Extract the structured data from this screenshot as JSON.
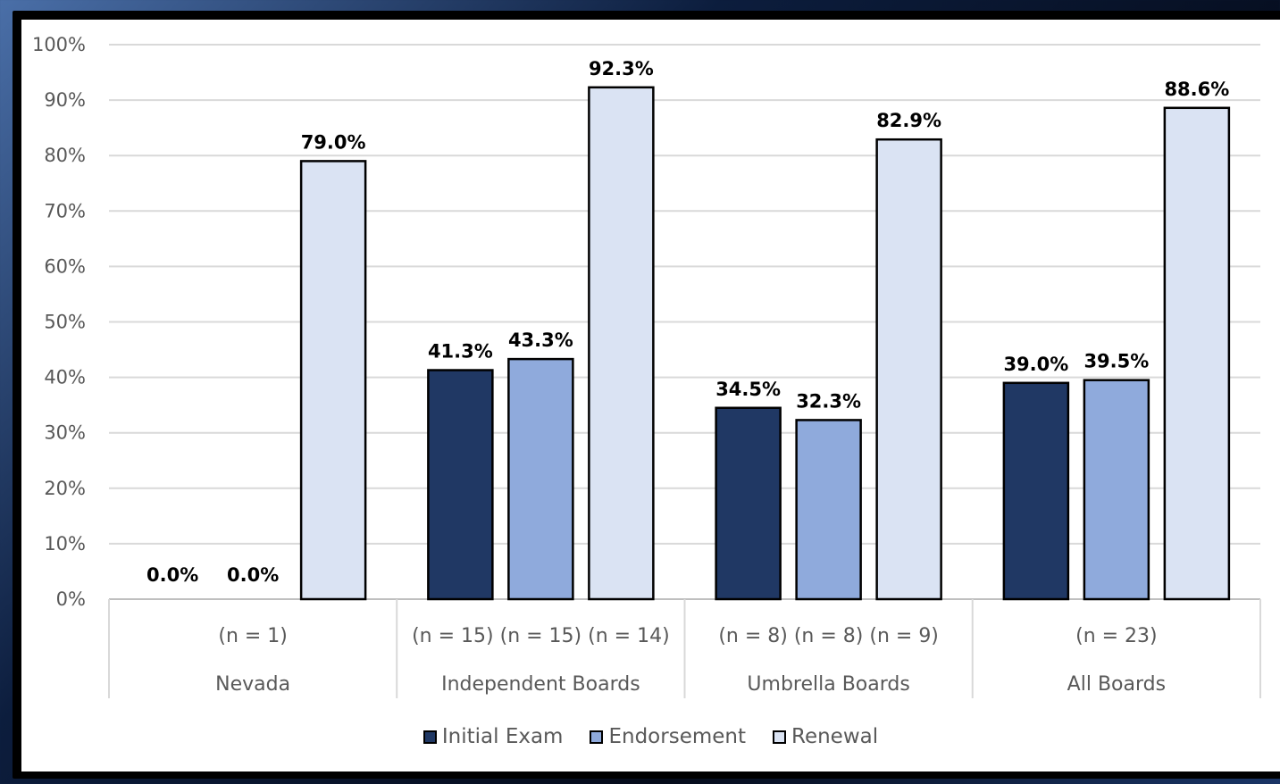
{
  "chart_data": {
    "type": "bar",
    "categories": [
      "Nevada",
      "Independent Boards",
      "Umbrella Boards",
      "All Boards"
    ],
    "series": [
      {
        "name": "Initial Exam",
        "color": "#203864",
        "values": [
          0.0,
          41.3,
          34.5,
          39.0
        ],
        "n_labels": [
          "",
          "(n = 15)",
          "(n = 8)",
          ""
        ]
      },
      {
        "name": "Endorsement",
        "color": "#8faadc",
        "values": [
          0.0,
          43.3,
          32.3,
          39.5
        ],
        "n_labels": [
          "",
          "(n = 15)",
          "(n = 8)",
          ""
        ]
      },
      {
        "name": "Renewal",
        "color": "#dae3f3",
        "values": [
          79.0,
          92.3,
          82.9,
          88.6
        ],
        "n_labels": [
          "",
          "(n = 14)",
          "(n = 9)",
          ""
        ]
      }
    ],
    "data_labels": [
      [
        "0.0%",
        "41.3%",
        "34.5%",
        "39.0%"
      ],
      [
        "0.0%",
        "43.3%",
        "32.3%",
        "39.5%"
      ],
      [
        "79.0%",
        "92.3%",
        "82.9%",
        "88.6%"
      ]
    ],
    "group_n_labels": [
      "(n = 1)",
      "(n = 15) (n = 15) (n = 14)",
      "(n = 8) (n = 8) (n = 9)",
      "(n = 23)"
    ],
    "yticks": [
      "0%",
      "10%",
      "20%",
      "30%",
      "40%",
      "50%",
      "60%",
      "70%",
      "80%",
      "90%",
      "100%"
    ],
    "ylim": [
      0,
      100
    ],
    "grid": true,
    "legend_position": "bottom"
  }
}
